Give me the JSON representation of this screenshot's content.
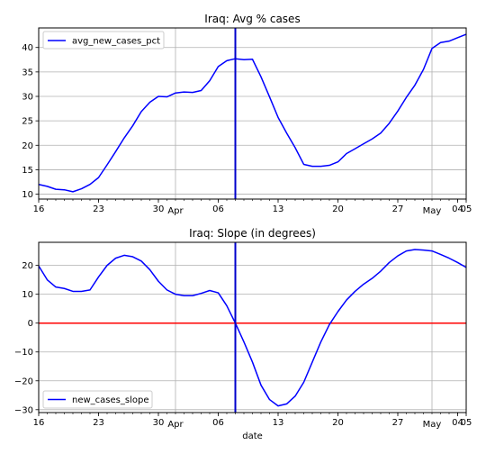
{
  "chart_data": [
    {
      "type": "line",
      "title": "Iraq: Avg % cases",
      "xlabel": "",
      "ylabel": "",
      "ylim": [
        9,
        44
      ],
      "yticks": [
        10,
        15,
        20,
        25,
        30,
        35,
        40
      ],
      "xticks": [
        {
          "day": 0,
          "label": "16"
        },
        {
          "day": 7,
          "label": "23"
        },
        {
          "day": 14,
          "label": "30"
        },
        {
          "day": 21,
          "label": "06"
        },
        {
          "day": 28,
          "label": "13"
        },
        {
          "day": 35,
          "label": "20"
        },
        {
          "day": 42,
          "label": "27"
        },
        {
          "day": 49,
          "label": "04"
        },
        {
          "day": 50,
          "label": "05"
        }
      ],
      "month_labels": [
        {
          "day": 16,
          "label": "Apr"
        },
        {
          "day": 46,
          "label": "May"
        }
      ],
      "grid": true,
      "legend": "upper left",
      "vline_day": 23,
      "series": [
        {
          "name": "avg_new_cases_pct",
          "color": "#0000ff",
          "x": [
            0,
            1,
            2,
            3,
            4,
            5,
            6,
            7,
            8,
            9,
            10,
            11,
            12,
            13,
            14,
            15,
            16,
            17,
            18,
            19,
            20,
            21,
            22,
            23,
            24,
            25,
            26,
            27,
            28,
            29,
            30,
            31,
            32,
            33,
            34,
            35,
            36,
            37,
            38,
            39,
            40,
            41,
            42,
            43,
            44,
            45,
            46,
            47,
            48,
            49,
            50
          ],
          "values": [
            12.0,
            11.6,
            11.0,
            10.9,
            10.5,
            11.1,
            12.0,
            13.4,
            16.0,
            18.7,
            21.5,
            24.0,
            26.9,
            28.8,
            30.0,
            29.9,
            30.7,
            30.9,
            30.8,
            31.2,
            33.2,
            36.1,
            37.3,
            37.7,
            37.5,
            37.6,
            34.0,
            29.9,
            25.7,
            22.5,
            19.5,
            16.1,
            15.7,
            15.7,
            15.9,
            16.6,
            18.3,
            19.3,
            20.3,
            21.3,
            22.5,
            24.5,
            27.0,
            29.8,
            32.3,
            35.5,
            39.8,
            41.0,
            41.3,
            42.0,
            42.7
          ]
        }
      ]
    },
    {
      "type": "line",
      "title": "Iraq: Slope (in degrees)",
      "xlabel": "date",
      "ylabel": "",
      "ylim": [
        -31,
        28
      ],
      "yticks": [
        -30,
        -20,
        -10,
        0,
        10,
        20
      ],
      "ytick_labels": [
        "−30",
        "−20",
        "−10",
        "0",
        "10",
        "20"
      ],
      "xticks": [
        {
          "day": 0,
          "label": "16"
        },
        {
          "day": 7,
          "label": "23"
        },
        {
          "day": 14,
          "label": "30"
        },
        {
          "day": 21,
          "label": "06"
        },
        {
          "day": 28,
          "label": "13"
        },
        {
          "day": 35,
          "label": "20"
        },
        {
          "day": 42,
          "label": "27"
        },
        {
          "day": 49,
          "label": "04"
        },
        {
          "day": 50,
          "label": "05"
        }
      ],
      "month_labels": [
        {
          "day": 16,
          "label": "Apr"
        },
        {
          "day": 46,
          "label": "May"
        }
      ],
      "grid": true,
      "legend": "lower left",
      "vline_day": 23,
      "hline_value": 0,
      "series": [
        {
          "name": "new_cases_slope",
          "color": "#0000ff",
          "x": [
            0,
            1,
            2,
            3,
            4,
            5,
            6,
            7,
            8,
            9,
            10,
            11,
            12,
            13,
            14,
            15,
            16,
            17,
            18,
            19,
            20,
            21,
            22,
            23,
            24,
            25,
            26,
            27,
            28,
            29,
            30,
            31,
            32,
            33,
            34,
            35,
            36,
            37,
            38,
            39,
            40,
            41,
            42,
            43,
            44,
            45,
            46,
            47,
            48,
            49,
            50
          ],
          "values": [
            19.8,
            15.0,
            12.5,
            12.0,
            11.0,
            11.0,
            11.5,
            16.0,
            20.0,
            22.5,
            23.5,
            23.0,
            21.5,
            18.5,
            14.5,
            11.5,
            10.0,
            9.5,
            9.5,
            10.3,
            11.3,
            10.5,
            6.0,
            0.0,
            -6.5,
            -13.5,
            -21.5,
            -26.5,
            -28.7,
            -28.0,
            -25.3,
            -20.5,
            -13.5,
            -6.5,
            -0.5,
            4.0,
            8.0,
            11.0,
            13.5,
            15.5,
            18.0,
            21.0,
            23.3,
            25.0,
            25.5,
            25.3,
            25.0,
            23.8,
            22.5,
            21.0,
            19.3
          ]
        }
      ]
    }
  ]
}
